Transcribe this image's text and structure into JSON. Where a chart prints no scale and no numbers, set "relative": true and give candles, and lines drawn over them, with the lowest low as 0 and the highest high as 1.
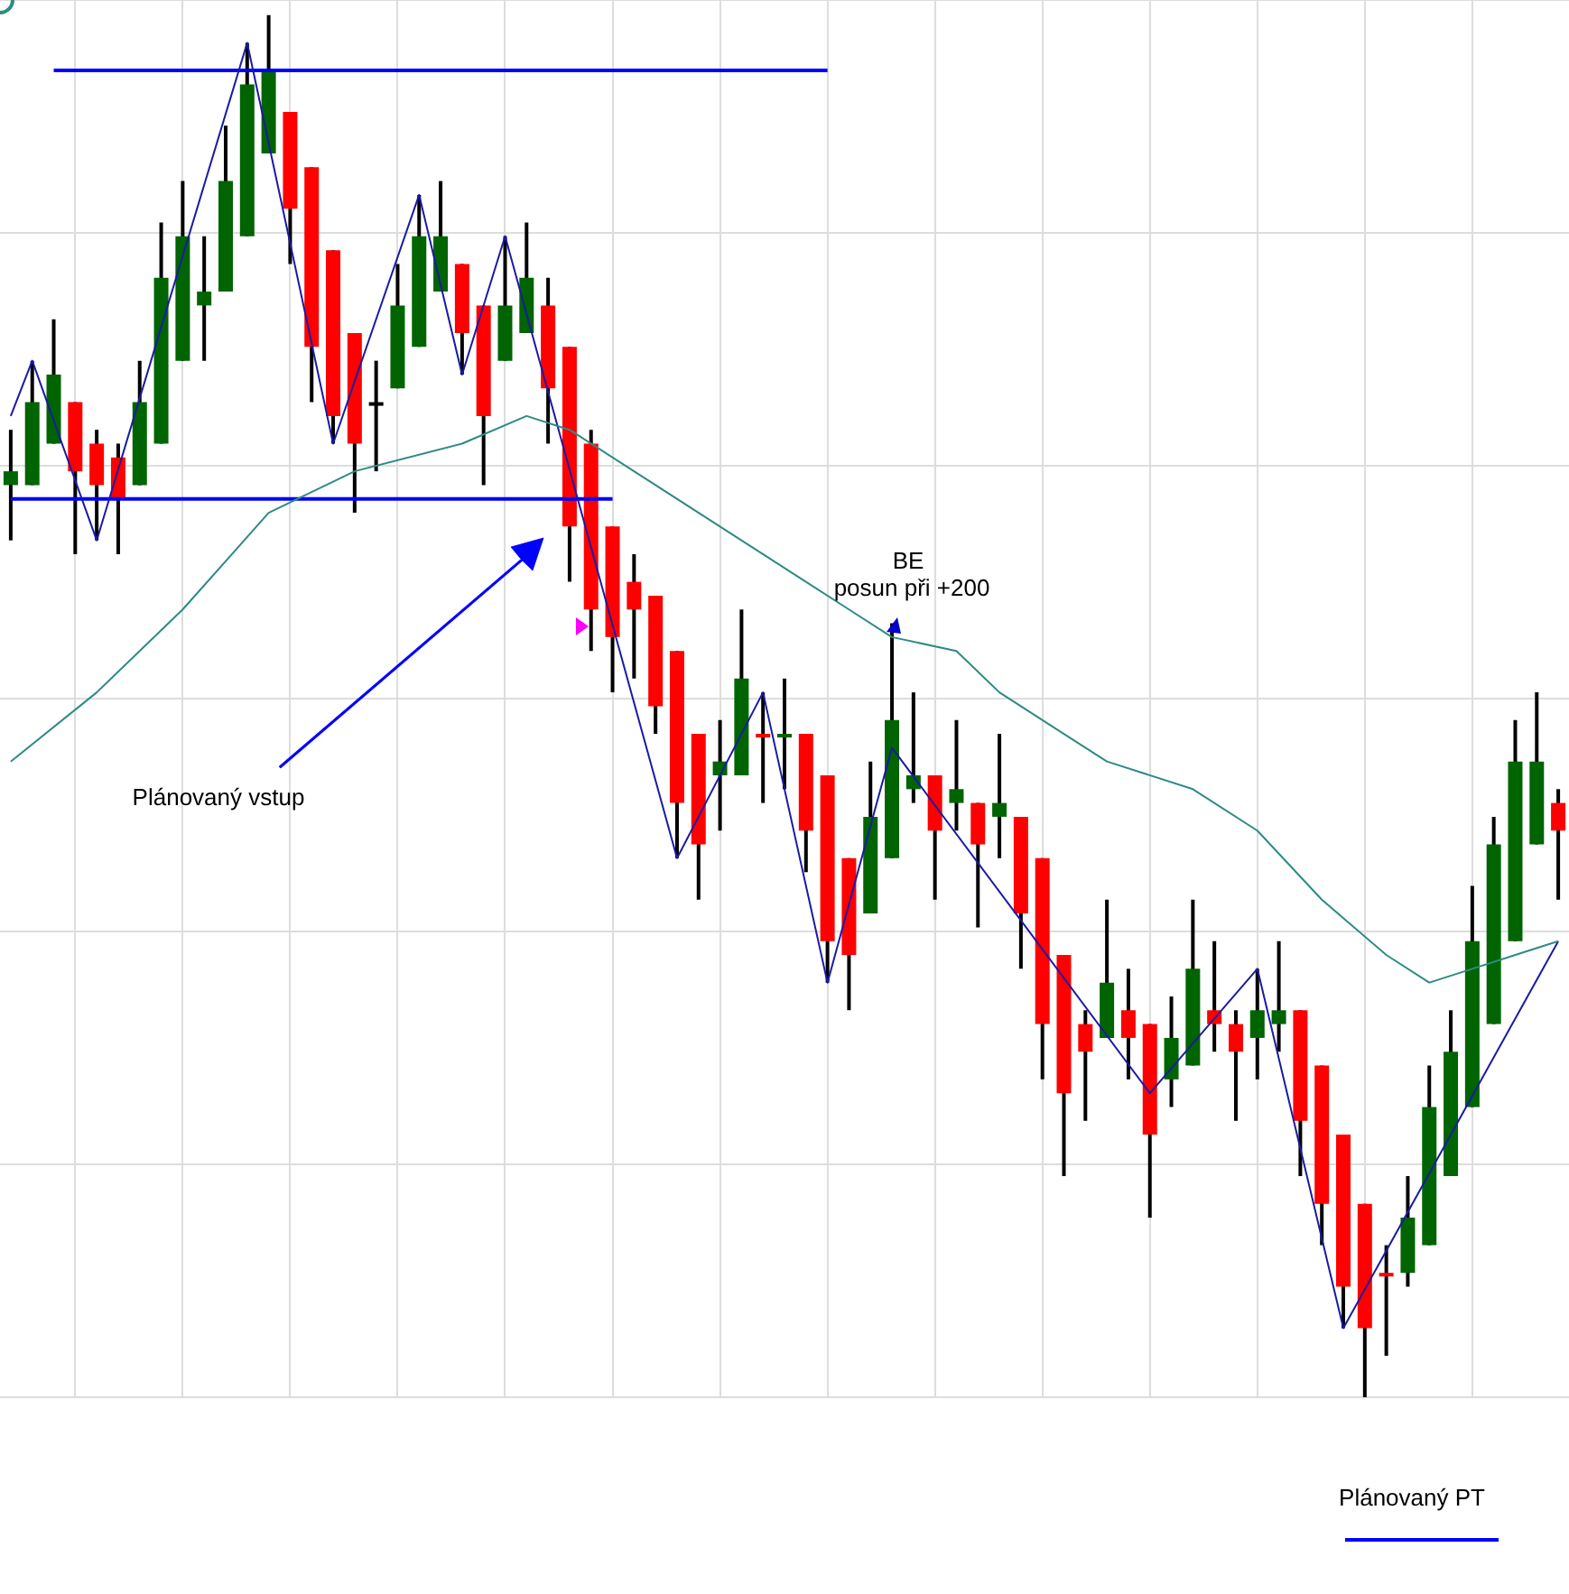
{
  "chart_data": {
    "type": "candlestick",
    "relative": true,
    "grid": true,
    "marker": "none",
    "line_style": "solid",
    "categories": [
      null,
      null,
      null,
      null,
      null,
      null,
      null,
      null,
      null,
      null,
      null,
      null,
      null,
      null,
      null,
      null,
      null,
      null,
      null,
      null,
      null,
      null,
      null,
      null,
      null,
      null,
      null,
      null,
      null,
      null,
      null,
      null,
      null,
      null,
      null,
      null,
      null,
      null,
      null,
      null,
      null,
      null,
      null,
      null,
      null,
      null,
      null,
      null,
      null,
      null,
      null,
      null,
      null,
      null,
      null,
      null,
      null,
      null,
      null,
      null,
      null,
      null,
      null,
      null,
      null,
      null,
      null,
      null,
      null,
      null,
      null,
      null,
      null
    ],
    "ohlc": [
      [
        0.66,
        0.7,
        0.62,
        0.67
      ],
      [
        0.66,
        0.75,
        0.66,
        0.72
      ],
      [
        0.69,
        0.78,
        0.69,
        0.74
      ],
      [
        0.72,
        0.72,
        0.61,
        0.67
      ],
      [
        0.69,
        0.7,
        0.62,
        0.66
      ],
      [
        0.68,
        0.69,
        0.61,
        0.65
      ],
      [
        0.66,
        0.75,
        0.66,
        0.72
      ],
      [
        0.69,
        0.85,
        0.69,
        0.81
      ],
      [
        0.75,
        0.88,
        0.75,
        0.84
      ],
      [
        0.79,
        0.84,
        0.75,
        0.8
      ],
      [
        0.8,
        0.92,
        0.8,
        0.88
      ],
      [
        0.84,
        0.98,
        0.84,
        0.95
      ],
      [
        0.9,
        1.0,
        0.9,
        0.96
      ],
      [
        0.93,
        0.93,
        0.82,
        0.86
      ],
      [
        0.89,
        0.89,
        0.72,
        0.76
      ],
      [
        0.83,
        0.83,
        0.69,
        0.71
      ],
      [
        0.77,
        0.77,
        0.64,
        0.69
      ],
      [
        0.72,
        0.75,
        0.67,
        0.72
      ],
      [
        0.73,
        0.82,
        0.73,
        0.79
      ],
      [
        0.76,
        0.87,
        0.76,
        0.84
      ],
      [
        0.8,
        0.88,
        0.8,
        0.84
      ],
      [
        0.82,
        0.82,
        0.74,
        0.77
      ],
      [
        0.79,
        0.79,
        0.66,
        0.71
      ],
      [
        0.75,
        0.84,
        0.75,
        0.79
      ],
      [
        0.77,
        0.85,
        0.77,
        0.81
      ],
      [
        0.79,
        0.81,
        0.69,
        0.73
      ],
      [
        0.76,
        0.76,
        0.59,
        0.63
      ],
      [
        0.69,
        0.7,
        0.54,
        0.57
      ],
      [
        0.63,
        0.63,
        0.51,
        0.55
      ],
      [
        0.59,
        0.61,
        0.52,
        0.57
      ],
      [
        0.58,
        0.58,
        0.48,
        0.5
      ],
      [
        0.54,
        0.54,
        0.39,
        0.43
      ],
      [
        0.48,
        0.48,
        0.36,
        0.4
      ],
      [
        0.45,
        0.49,
        0.41,
        0.46
      ],
      [
        0.45,
        0.57,
        0.45,
        0.52
      ],
      [
        0.48,
        0.51,
        0.43,
        0.48
      ],
      [
        0.48,
        0.52,
        0.44,
        0.48
      ],
      [
        0.48,
        0.48,
        0.38,
        0.41
      ],
      [
        0.45,
        0.45,
        0.3,
        0.33
      ],
      [
        0.39,
        0.39,
        0.28,
        0.32
      ],
      [
        0.35,
        0.46,
        0.35,
        0.42
      ],
      [
        0.39,
        0.56,
        0.39,
        0.49
      ],
      [
        0.44,
        0.51,
        0.43,
        0.45
      ],
      [
        0.45,
        0.45,
        0.36,
        0.41
      ],
      [
        0.43,
        0.49,
        0.41,
        0.44
      ],
      [
        0.43,
        0.43,
        0.34,
        0.4
      ],
      [
        0.42,
        0.48,
        0.39,
        0.43
      ],
      [
        0.42,
        0.42,
        0.31,
        0.35
      ],
      [
        0.39,
        0.39,
        0.23,
        0.27
      ],
      [
        0.32,
        0.32,
        0.16,
        0.22
      ],
      [
        0.27,
        0.28,
        0.2,
        0.25
      ],
      [
        0.26,
        0.36,
        0.26,
        0.3
      ],
      [
        0.28,
        0.31,
        0.23,
        0.26
      ],
      [
        0.27,
        0.27,
        0.13,
        0.19
      ],
      [
        0.23,
        0.29,
        0.21,
        0.26
      ],
      [
        0.24,
        0.36,
        0.24,
        0.31
      ],
      [
        0.28,
        0.33,
        0.25,
        0.27
      ],
      [
        0.27,
        0.28,
        0.2,
        0.25
      ],
      [
        0.26,
        0.31,
        0.23,
        0.28
      ],
      [
        0.27,
        0.33,
        0.25,
        0.28
      ],
      [
        0.28,
        0.28,
        0.16,
        0.2
      ],
      [
        0.24,
        0.24,
        0.11,
        0.14
      ],
      [
        0.19,
        0.19,
        0.05,
        0.08
      ],
      [
        0.14,
        0.14,
        0.0,
        0.05
      ],
      [
        0.09,
        0.11,
        0.03,
        0.09
      ],
      [
        0.09,
        0.16,
        0.08,
        0.13
      ],
      [
        0.11,
        0.24,
        0.11,
        0.21
      ],
      [
        0.16,
        0.28,
        0.16,
        0.25
      ],
      [
        0.21,
        0.37,
        0.21,
        0.33
      ],
      [
        0.27,
        0.42,
        0.27,
        0.4
      ],
      [
        0.33,
        0.49,
        0.33,
        0.46
      ],
      [
        0.4,
        0.51,
        0.4,
        0.46
      ],
      [
        0.43,
        0.44,
        0.36,
        0.41
      ]
    ],
    "colors": [
      "#006400",
      "#006400",
      "#006400",
      "#ff0000",
      "#ff0000",
      "#ff0000",
      "#006400",
      "#006400",
      "#006400",
      "#006400",
      "#006400",
      "#006400",
      "#006400",
      "#ff0000",
      "#ff0000",
      "#ff0000",
      "#ff0000",
      "#000000",
      "#006400",
      "#006400",
      "#006400",
      "#ff0000",
      "#ff0000",
      "#006400",
      "#006400",
      "#ff0000",
      "#ff0000",
      "#ff0000",
      "#ff0000",
      "#ff0000",
      "#ff0000",
      "#ff0000",
      "#ff0000",
      "#006400",
      "#006400",
      "#ff0000",
      "#006400",
      "#ff0000",
      "#ff0000",
      "#ff0000",
      "#006400",
      "#006400",
      "#006400",
      "#ff0000",
      "#006400",
      "#ff0000",
      "#006400",
      "#ff0000",
      "#ff0000",
      "#ff0000",
      "#ff0000",
      "#006400",
      "#ff0000",
      "#ff0000",
      "#006400",
      "#006400",
      "#ff0000",
      "#ff0000",
      "#006400",
      "#006400",
      "#ff0000",
      "#ff0000",
      "#ff0000",
      "#ff0000",
      "#ff0000",
      "#006400",
      "#006400",
      "#006400",
      "#006400",
      "#006400",
      "#006400",
      "#006400",
      "#ff0000"
    ],
    "series": [
      {
        "type": "line",
        "color": "#2e8b84",
        "values": [
          0.46,
          null,
          null,
          null,
          0.51,
          null,
          null,
          null,
          0.57,
          null,
          null,
          null,
          0.64,
          null,
          null,
          null,
          0.67,
          null,
          null,
          null,
          null,
          0.69,
          null,
          null,
          0.71,
          null,
          0.7,
          null,
          null,
          0.67,
          null,
          null,
          null,
          0.63,
          null,
          null,
          null,
          0.59,
          null,
          0.57,
          null,
          0.55,
          null,
          null,
          0.54,
          null,
          0.51,
          null,
          null,
          0.48,
          null,
          0.46,
          null,
          null,
          null,
          0.44,
          null,
          null,
          0.41,
          null,
          null,
          0.36,
          null,
          null,
          0.32,
          null,
          0.3,
          null,
          0.31,
          null,
          0.32,
          null,
          0.33
        ]
      },
      {
        "type": "line",
        "color": "#1a1aa6",
        "values": [
          0.71,
          0.75,
          null,
          null,
          0.62,
          null,
          null,
          null,
          null,
          null,
          null,
          0.98,
          null,
          null,
          null,
          0.69,
          null,
          null,
          null,
          0.87,
          null,
          0.74,
          null,
          0.84,
          null,
          null,
          null,
          null,
          null,
          null,
          null,
          0.39,
          null,
          null,
          null,
          0.51,
          null,
          null,
          0.3,
          null,
          null,
          0.47,
          null,
          null,
          null,
          null,
          null,
          null,
          null,
          null,
          null,
          null,
          null,
          0.22,
          null,
          null,
          null,
          null,
          0.31,
          null,
          null,
          null,
          0.05,
          null,
          null,
          null,
          null,
          null,
          null,
          null,
          null,
          null,
          0.33
        ]
      },
      {
        "type": "line",
        "color": "#0000ff",
        "values": [
          null,
          null,
          0.96,
          null,
          null,
          null,
          null,
          null,
          null,
          null,
          null,
          null,
          null,
          null,
          null,
          null,
          null,
          null,
          null,
          null,
          null,
          null,
          null,
          null,
          null,
          null,
          null,
          null,
          null,
          null,
          null,
          null,
          null,
          null,
          null,
          null,
          null,
          null,
          0.96,
          null,
          null,
          null,
          null,
          null,
          null,
          null,
          null,
          null,
          null,
          null,
          null,
          null,
          null,
          null,
          null,
          null,
          null,
          null,
          null,
          null,
          null,
          null,
          null,
          null,
          null,
          null,
          null,
          null,
          null,
          null,
          null,
          null,
          null
        ]
      },
      {
        "type": "line",
        "color": "#0000ff",
        "values": [
          0.65,
          null,
          null,
          null,
          null,
          null,
          null,
          null,
          null,
          null,
          null,
          null,
          null,
          null,
          null,
          null,
          null,
          null,
          null,
          null,
          null,
          null,
          null,
          null,
          null,
          null,
          null,
          null,
          0.65,
          null,
          null,
          null,
          null,
          null,
          null,
          null,
          null,
          null,
          null,
          null,
          null,
          null,
          null,
          null,
          null,
          null,
          null,
          null,
          null,
          null,
          null,
          null,
          null,
          null,
          null,
          null,
          null,
          null,
          null,
          null,
          null,
          null,
          null,
          null,
          null,
          null,
          null,
          null,
          null,
          null,
          null,
          null,
          null
        ]
      }
    ],
    "annotations": [
      "BE",
      "posun při +200",
      "Plánovaný vstup",
      "Plánovaný PT"
    ]
  }
}
